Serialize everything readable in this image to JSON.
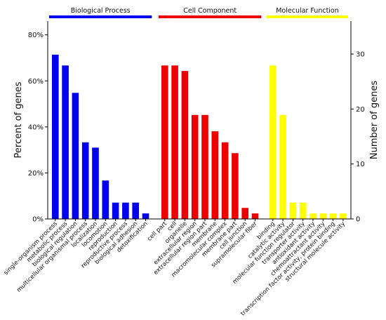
{
  "chart_data": {
    "type": "bar",
    "ylabel": "Percent of genes",
    "y2label": "Number of genes",
    "ylim": [
      0,
      86
    ],
    "yticks": [
      "0%",
      "20%",
      "40%",
      "60%",
      "80%"
    ],
    "y2lim": [
      0,
      36
    ],
    "y2ticks": [
      "0",
      "10",
      "20",
      "30"
    ],
    "groups": [
      {
        "name": "Biological Process",
        "color": "#0000ee",
        "categories": [
          "single-organism process",
          "metabolic process",
          "biological regulation",
          "multicellular organismal process",
          "localization",
          "locomotion",
          "reproduction",
          "reproductive process",
          "biological adhesion",
          "detoxification"
        ],
        "values": [
          71.4,
          66.7,
          54.8,
          33.3,
          31.0,
          16.7,
          7.1,
          7.1,
          7.1,
          2.4
        ]
      },
      {
        "name": "Cell Component",
        "color": "#ee0000",
        "categories": [
          "cell part",
          "cell",
          "organelle",
          "extracellular region",
          "extracellular region part",
          "membrane",
          "macromolecular complex",
          "membrane part",
          "cell junction",
          "supramolecular fiber"
        ],
        "values": [
          66.7,
          66.7,
          64.3,
          45.2,
          45.2,
          38.1,
          33.3,
          28.6,
          4.8,
          2.4
        ]
      },
      {
        "name": "Molecular Function",
        "color": "#ffff00",
        "categories": [
          "binding",
          "catalytic activity",
          "molecular function regulator",
          "transporter activity",
          "antioxidant activity",
          "chemoattractant activity",
          "transcription factor activity, protein binding",
          "structural molecule activity"
        ],
        "values": [
          66.7,
          45.2,
          7.1,
          7.1,
          2.4,
          2.4,
          2.4,
          2.4
        ]
      }
    ]
  }
}
